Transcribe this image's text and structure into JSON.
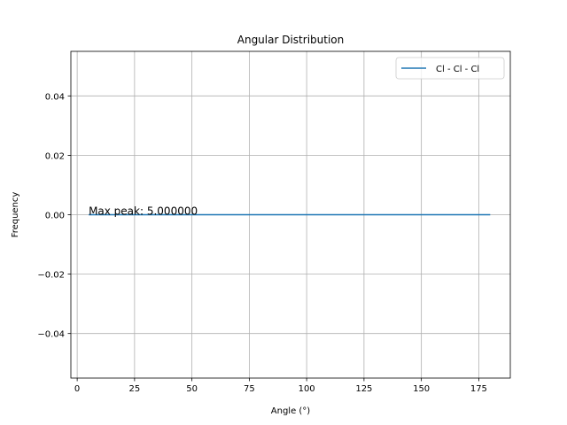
{
  "chart_data": {
    "type": "line",
    "title": "Angular Distribution",
    "xlabel": "Angle (°)",
    "ylabel": "Frequency",
    "xlim": [
      -2.75,
      188.75
    ],
    "ylim": [
      -0.055,
      0.055
    ],
    "xticks": [
      0,
      25,
      50,
      75,
      100,
      125,
      150,
      175
    ],
    "yticks": [
      -0.04,
      -0.02,
      0.0,
      0.02,
      0.04
    ],
    "xtick_labels": [
      "0",
      "25",
      "50",
      "75",
      "100",
      "125",
      "150",
      "175"
    ],
    "ytick_labels": [
      "−0.04",
      "−0.02",
      "0.00",
      "0.02",
      "0.04"
    ],
    "grid": true,
    "legend_position": "top-right",
    "series": [
      {
        "name": "Cl - Cl - Cl",
        "color": "#1f77b4",
        "x": [
          5,
          180
        ],
        "y": [
          0,
          0
        ]
      }
    ],
    "annotations": [
      {
        "text": "Max peak: 5.000000",
        "x": 5,
        "y": 0
      }
    ]
  }
}
